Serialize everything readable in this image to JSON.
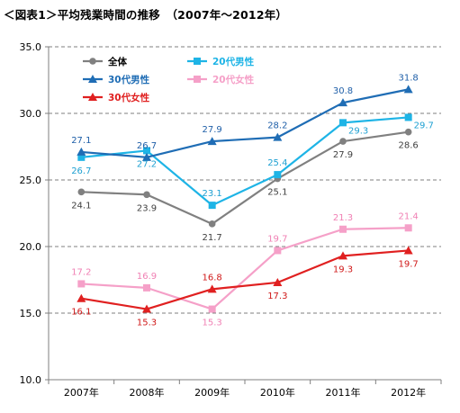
{
  "title": "＜図表1＞平均残業時間の推移　（2007年～2012年）",
  "chart_data": {
    "type": "line",
    "title": "＜図表1＞平均残業時間の推移　（2007年～2012年）",
    "categories": [
      "2007年",
      "2008年",
      "2009年",
      "2010年",
      "2011年",
      "2012年"
    ],
    "ylim": [
      10.0,
      35.0
    ],
    "yticks": [
      "10.0",
      "15.0",
      "20.0",
      "25.0",
      "30.0",
      "35.0"
    ],
    "grid": "horizontal dashed at 15.0, 20.0, 25.0, 30.0",
    "legend": "top-left inside plot, two columns",
    "series": [
      {
        "name": "全体",
        "marker": "circle",
        "color": "#808080",
        "label_color": "#404040",
        "values": [
          24.1,
          23.9,
          21.7,
          25.1,
          27.9,
          28.6
        ],
        "labels": [
          "24.1",
          "23.9",
          "21.7",
          "25.1",
          "27.9",
          "28.6"
        ],
        "label_pos": [
          "below",
          "below",
          "below",
          "below",
          "below",
          "below"
        ]
      },
      {
        "name": "20代男性",
        "marker": "square",
        "color": "#1EB4E6",
        "label_color": "#1EA0D2",
        "values": [
          26.7,
          27.2,
          23.1,
          25.4,
          29.3,
          29.7
        ],
        "labels": [
          "26.7",
          "27.2",
          "23.1",
          "25.4",
          "29.3",
          "29.7"
        ],
        "label_pos": [
          "below",
          "below",
          "above",
          "above",
          "right",
          "right"
        ]
      },
      {
        "name": "30代男性",
        "marker": "triangle",
        "color": "#1F6DB5",
        "label_color": "#1F5FA8",
        "values": [
          27.1,
          26.7,
          27.9,
          28.2,
          30.8,
          31.8
        ],
        "labels": [
          "27.1",
          "26.7",
          "27.9",
          "28.2",
          "30.8",
          "31.8"
        ],
        "label_pos": [
          "above",
          "above",
          "above",
          "above",
          "above",
          "above"
        ]
      },
      {
        "name": "20代女性",
        "marker": "square",
        "color": "#F5A0C8",
        "label_color": "#F080B4",
        "values": [
          17.2,
          16.9,
          15.3,
          19.7,
          21.3,
          21.4
        ],
        "labels": [
          "17.2",
          "16.9",
          "15.3",
          "19.7",
          "21.3",
          "21.4"
        ],
        "label_pos": [
          "above",
          "above",
          "below",
          "above",
          "above",
          "above"
        ]
      },
      {
        "name": "30代女性",
        "marker": "triangle",
        "color": "#E02020",
        "label_color": "#D01818",
        "values": [
          16.1,
          15.3,
          16.8,
          17.3,
          19.3,
          19.7
        ],
        "labels": [
          "16.1",
          "15.3",
          "16.8",
          "17.3",
          "19.3",
          "19.7"
        ],
        "label_pos": [
          "below",
          "below",
          "above",
          "below",
          "below",
          "below"
        ]
      }
    ]
  }
}
